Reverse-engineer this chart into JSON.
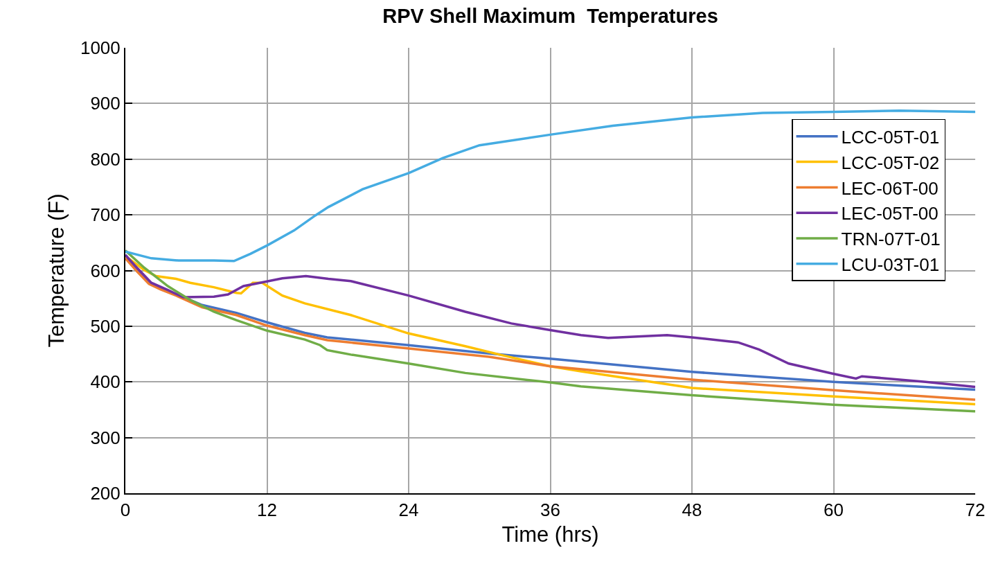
{
  "chart_data": {
    "type": "line",
    "title": "RPV Shell Maximum  Temperatures",
    "xlabel": "Time (hrs)",
    "ylabel": "Temperature (F)",
    "xlim": [
      0,
      72
    ],
    "xticks": [
      0,
      12,
      24,
      36,
      48,
      60,
      72
    ],
    "ylim": [
      200,
      1000
    ],
    "yticks": [
      200,
      300,
      400,
      500,
      600,
      700,
      800,
      900,
      1000
    ],
    "grid": true,
    "legend": "top right",
    "line_style": "solid",
    "series": [
      {
        "name": "LCC-05T-01",
        "color": "#4472c4",
        "x": [
          0,
          1,
          2,
          3,
          4.3,
          6.5,
          9.4,
          12,
          15.2,
          17.1,
          24,
          30.8,
          36.3,
          48,
          60,
          72
        ],
        "values": [
          628,
          600,
          578,
          568,
          558,
          538,
          524,
          507,
          488,
          480,
          466,
          451,
          441,
          418,
          400,
          386
        ]
      },
      {
        "name": "LCC-05T-02",
        "color": "#ffc000",
        "x": [
          0,
          1.6,
          2.6,
          4.3,
          5.5,
          7.5,
          9.4,
          9.8,
          10.8,
          11.6,
          13.3,
          15.2,
          19.1,
          24,
          28.8,
          31.7,
          36,
          38.6,
          48,
          60,
          72
        ],
        "values": [
          626,
          601,
          590,
          585,
          578,
          570,
          560,
          559,
          578,
          578,
          555,
          541,
          520,
          487,
          464,
          449,
          428,
          419,
          389,
          374,
          360
        ]
      },
      {
        "name": "LEC-06T-00",
        "color": "#ed7d31",
        "x": [
          0,
          1,
          2,
          3,
          4.3,
          6.5,
          9.4,
          12,
          15.2,
          17.1,
          24,
          30.8,
          36,
          48,
          60,
          72
        ],
        "values": [
          622,
          598,
          576,
          566,
          555,
          534,
          520,
          501,
          484,
          475,
          460,
          445,
          428,
          404,
          385,
          368
        ]
      },
      {
        "name": "LEC-05T-00",
        "color": "#7030a0",
        "x": [
          0,
          0.8,
          2.2,
          3.6,
          4.9,
          7.5,
          8.7,
          10,
          11.4,
          13.3,
          15.3,
          17.2,
          19.1,
          24,
          28.8,
          32.7,
          36,
          38.6,
          40.9,
          45.9,
          48,
          51.9,
          53.7,
          56.2,
          59.9,
          61.9,
          62.4,
          67.8,
          72
        ],
        "values": [
          628,
          609,
          578,
          565,
          552,
          553,
          557,
          572,
          578,
          586,
          590,
          585,
          581,
          555,
          526,
          505,
          493,
          484,
          479,
          484,
          480,
          471,
          458,
          433,
          415,
          406,
          410,
          400,
          391
        ]
      },
      {
        "name": "TRN-07T-01",
        "color": "#70ad47",
        "x": [
          0,
          1.6,
          3.6,
          5.5,
          7.5,
          9.4,
          12,
          15.2,
          16.5,
          17.1,
          19.1,
          24,
          28.8,
          36,
          38.6,
          48,
          60,
          72
        ],
        "values": [
          636,
          605,
          572,
          547,
          526,
          511,
          492,
          476,
          466,
          457,
          449,
          433,
          416,
          399,
          392,
          376,
          359,
          347
        ]
      },
      {
        "name": "LCU-03T-01",
        "color": "#45ace2",
        "x": [
          0,
          2.2,
          4.5,
          7.5,
          9.2,
          10.6,
          12,
          14.3,
          16.1,
          17.2,
          20.1,
          24,
          26.9,
          30,
          36,
          41.3,
          48,
          54,
          60,
          65.6,
          72
        ],
        "values": [
          634,
          622,
          618,
          618,
          617,
          630,
          645,
          672,
          699,
          714,
          746,
          775,
          802,
          825,
          844,
          860,
          875,
          883,
          885,
          887,
          885
        ]
      }
    ]
  }
}
